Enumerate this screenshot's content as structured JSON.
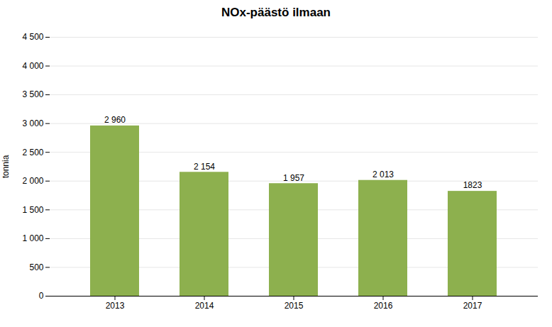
{
  "chart_data": {
    "type": "bar",
    "title": "NOx-päästö ilmaan",
    "categories": [
      "2013",
      "2014",
      "2015",
      "2016",
      "2017"
    ],
    "values": [
      2960,
      2154,
      1957,
      2013,
      1823
    ],
    "value_labels": [
      "2 960",
      "2 154",
      "1 957",
      "2 013",
      "1823"
    ],
    "data_labels": true,
    "color": "#8db04e",
    "ylabel": "tonnia",
    "ylim": [
      0,
      4500
    ],
    "yticks": [
      0,
      500,
      {
        "value": 1000,
        "label": "1 000"
      },
      {
        "value": 1500,
        "label": "1 500"
      },
      {
        "value": 2000,
        "label": "2 000"
      },
      {
        "value": 2500,
        "label": "2 500"
      },
      {
        "value": 3000,
        "label": "3 000"
      },
      {
        "value": 3500,
        "label": "3 500"
      },
      {
        "value": 4000,
        "label": "4 000"
      },
      {
        "value": 4500,
        "label": "4 500"
      }
    ],
    "grid": true
  }
}
